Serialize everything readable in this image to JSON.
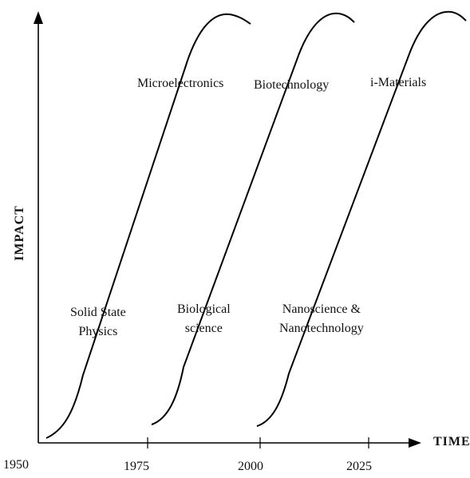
{
  "axes": {
    "y_title": "IMPACT",
    "x_title": "TIME",
    "x_ticks": [
      "1950",
      "1975",
      "2000",
      "2025"
    ]
  },
  "upper_labels": {
    "microelectronics": "Microelectronics",
    "biotechnology": "Biotechnology",
    "i_materials": "i-Materials"
  },
  "lower_labels": {
    "solid_state": {
      "line1": "Solid State",
      "line2": "Physics"
    },
    "biological": {
      "line1": "Biological",
      "line2": "science"
    },
    "nano": {
      "line1": "Nanoscience &",
      "line2": "Nanotechnology"
    }
  },
  "colors": {
    "line": "#000000",
    "text": "#111111",
    "background": "#ffffff"
  }
}
